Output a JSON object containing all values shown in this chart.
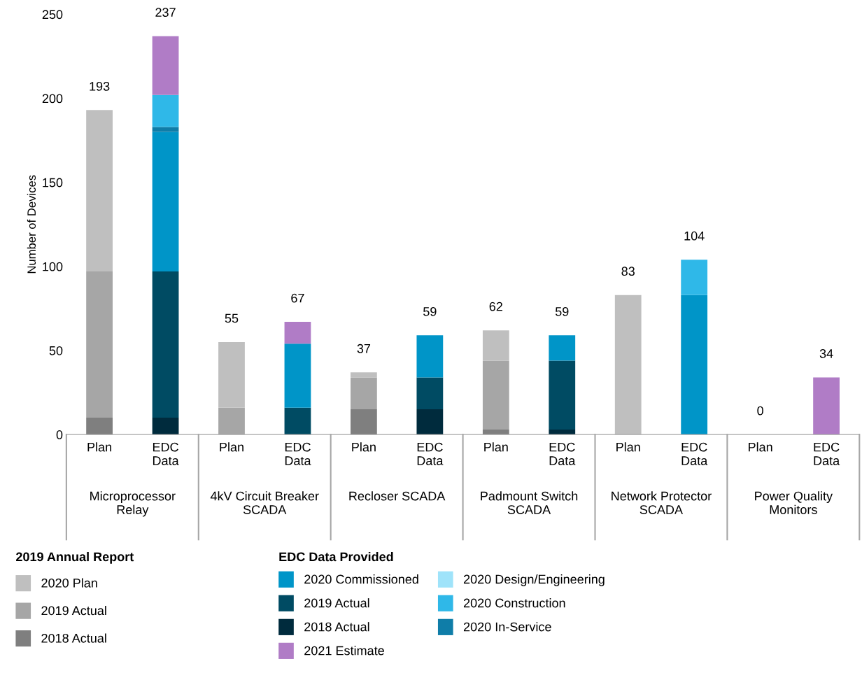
{
  "chart_data": {
    "type": "bar",
    "stacked": true,
    "ylabel": "Number of Devices",
    "categories": [
      "Plan",
      "EDC\nData",
      "Plan",
      "EDC\nData",
      "Plan",
      "EDC\nData",
      "Plan",
      "EDC\nData",
      "Plan",
      "EDC\nData",
      "Plan",
      "EDC\nData"
    ],
    "series": [
      {
        "name": "2018 Actual",
        "color": "#7f7f7f",
        "values": [
          10,
          null,
          null,
          null,
          15,
          null,
          3,
          null,
          null,
          null,
          null,
          null
        ]
      },
      {
        "name": "2019 Actual",
        "color": "#a6a6a6",
        "values": [
          87,
          null,
          16,
          null,
          19,
          null,
          41,
          null,
          null,
          null,
          null,
          null
        ]
      },
      {
        "name": "2020 Plan",
        "color": "#bfbfbf",
        "values": [
          96,
          null,
          39,
          null,
          3,
          null,
          18,
          null,
          83,
          null,
          0,
          null
        ]
      },
      {
        "name": "2018 Actual",
        "color": "#002b3d",
        "values": [
          null,
          10,
          null,
          null,
          null,
          15,
          null,
          3,
          null,
          null,
          null,
          null
        ]
      },
      {
        "name": "2019 Actual",
        "color": "#004b63",
        "values": [
          null,
          87,
          null,
          16,
          null,
          19,
          null,
          41,
          null,
          null,
          null,
          null
        ]
      },
      {
        "name": "2020 Commissioned",
        "color": "#0095c8",
        "values": [
          null,
          83,
          null,
          38,
          null,
          25,
          null,
          15,
          null,
          83,
          null,
          null
        ]
      },
      {
        "name": "2020 In-Service",
        "color": "#0f7da8",
        "values": [
          null,
          3,
          null,
          null,
          null,
          null,
          null,
          null,
          null,
          null,
          null,
          null
        ]
      },
      {
        "name": "2020 Construction",
        "color": "#2fb8e8",
        "values": [
          null,
          19,
          null,
          null,
          null,
          null,
          null,
          null,
          null,
          21,
          null,
          null
        ]
      },
      {
        "name": "2020 Design/Engineering",
        "color": "#9fe3fa",
        "values": [
          null,
          null,
          null,
          null,
          null,
          null,
          null,
          null,
          null,
          null,
          null,
          null
        ]
      },
      {
        "name": "2021 Estimate",
        "color": "#b07cc6",
        "values": [
          null,
          35,
          null,
          13,
          null,
          null,
          null,
          null,
          null,
          null,
          null,
          34
        ]
      }
    ],
    "totals": [
      "193",
      "237",
      "55",
      "67",
      "37",
      "59",
      "62",
      "59",
      "83",
      "104",
      "0",
      "34"
    ],
    "ylim": [
      0,
      250
    ],
    "yticks": [
      0,
      50,
      100,
      150,
      200,
      250
    ],
    "grid": false,
    "legend": "bottom",
    "annotations": [
      "Microprocessor\nRelay",
      "4kV Circuit Breaker\nSCADA",
      "Recloser SCADA",
      "Padmount Switch\nSCADA",
      "Network Protector\nSCADA",
      "Power Quality\nMonitors",
      "2019 Annual Report",
      "EDC Data Provided"
    ]
  }
}
